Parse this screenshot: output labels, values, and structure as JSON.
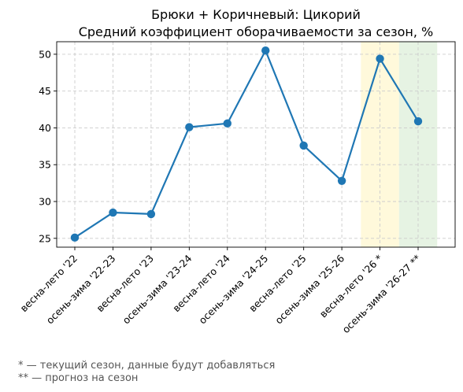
{
  "chart_data": {
    "type": "line",
    "title": "Брюки + Коричневый: Цикорий",
    "subtitle": "Средний коэффициент оборачиваемости за сезон, %",
    "categories": [
      "весна-лето '22",
      "осень-зима '22-23",
      "весна-лето '23",
      "осень-зима '23-24",
      "весна-лето '24",
      "осень-зима '24-25",
      "весна-лето '25",
      "осень-зима '25-26",
      "весна-лето '26 *",
      "осень-зима '26-27 **"
    ],
    "series": [
      {
        "values": [
          25.1,
          28.5,
          28.3,
          40.1,
          40.6,
          50.5,
          37.6,
          32.8,
          49.4,
          40.9
        ],
        "color": "#1f77b4"
      }
    ],
    "yticks": [
      25,
      30,
      35,
      40,
      45,
      50
    ],
    "ylim": [
      23.8,
      51.7
    ],
    "grid": true,
    "highlights": [
      {
        "category_index": 8,
        "color": "#fff9db"
      },
      {
        "category_index": 9,
        "color": "#e6f3e3"
      }
    ]
  },
  "footnotes": [
    "* — текущий сезон, данные будут добавляться",
    "** — прогноз на сезон"
  ]
}
